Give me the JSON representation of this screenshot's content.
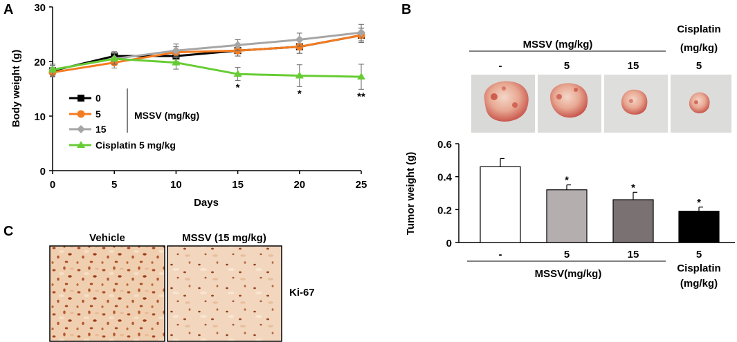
{
  "panels": {
    "a": "A",
    "b": "B",
    "c": "C"
  },
  "chart_data": [
    {
      "type": "line",
      "panel": "A",
      "x": [
        0,
        5,
        10,
        15,
        20,
        25
      ],
      "xlabel": "Days",
      "ylabel": "Body weight (g)",
      "xlim": [
        0,
        25
      ],
      "ylim": [
        0,
        30
      ],
      "xticks": [
        0,
        5,
        10,
        15,
        20,
        25
      ],
      "yticks": [
        0,
        10,
        20,
        30
      ],
      "series": [
        {
          "name": "0",
          "color": "#000000",
          "marker": "square",
          "values": [
            18.3,
            21.0,
            21.0,
            22.0,
            22.7,
            24.8
          ],
          "errors": [
            1.0,
            0.8,
            1.0,
            1.0,
            1.2,
            1.3
          ]
        },
        {
          "name": "5",
          "color": "#f47b20",
          "marker": "circle",
          "values": [
            18.0,
            19.8,
            21.7,
            22.0,
            22.7,
            24.8
          ],
          "errors": [
            0.8,
            1.0,
            1.0,
            1.0,
            1.2,
            1.3
          ]
        },
        {
          "name": "15",
          "color": "#a6a6a6",
          "marker": "diamond",
          "values": [
            18.5,
            20.5,
            22.0,
            23.0,
            24.0,
            25.3
          ],
          "errors": [
            1.0,
            1.0,
            1.2,
            1.0,
            1.2,
            1.5
          ]
        },
        {
          "name": "Cisplatin 5 mg/kg",
          "color": "#66cc33",
          "marker": "triangle",
          "values": [
            18.5,
            20.5,
            19.8,
            17.7,
            17.4,
            17.2
          ],
          "errors": [
            1.0,
            1.0,
            1.2,
            1.2,
            2.0,
            2.3
          ]
        }
      ],
      "annotations": [
        {
          "x": 15,
          "text": "*"
        },
        {
          "x": 20,
          "text": "*"
        },
        {
          "x": 25,
          "text": "**"
        }
      ],
      "legend_group_label": "MSSV (mg/kg)",
      "legend_position": "bottom-left"
    },
    {
      "type": "bar",
      "panel": "B",
      "categories": [
        "-",
        "5",
        "15",
        "5"
      ],
      "values": [
        0.46,
        0.32,
        0.26,
        0.19
      ],
      "errors": [
        0.05,
        0.03,
        0.045,
        0.025
      ],
      "colors": [
        "#ffffff",
        "#b4aeae",
        "#7a7272",
        "#000000"
      ],
      "significance": [
        "",
        "*",
        "*",
        "*"
      ],
      "ylabel": "Tumor weight (g)",
      "ylim": [
        0,
        0.6
      ],
      "yticks": [
        0,
        0.2,
        0.4,
        0.6
      ],
      "ytick_labels": [
        "0",
        "0.2",
        "0.4",
        "0.6"
      ],
      "group_label": "MSSV(mg/kg)",
      "cisplatin_label": [
        "Cisplatin",
        "(mg/kg)"
      ]
    }
  ],
  "photos": {
    "header_mssv": "MSSV (mg/kg)",
    "header_cisplatin": [
      "Cisplatin",
      "(mg/kg)"
    ],
    "labels": [
      "-",
      "5",
      "15",
      "5"
    ]
  },
  "ihc": {
    "vehicle_label": "Vehicle",
    "treated_label": "MSSV (15 mg/kg)",
    "marker_label": "Ki-67"
  }
}
